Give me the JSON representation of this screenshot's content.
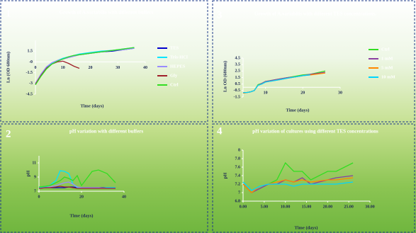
{
  "chart_data": [
    {
      "type": "line",
      "label": "1",
      "title": "Growth of A.variabilis with different buffers",
      "xlabel": "Time (days)",
      "ylabel": "Ln (OD 680nm)",
      "x": [
        0,
        2,
        4,
        6,
        8,
        10,
        12,
        14,
        16,
        20,
        24,
        28,
        32,
        36
      ],
      "series": [
        {
          "name": "TES",
          "color": "#0000cc",
          "values": [
            -3.0,
            -1.8,
            -0.8,
            -0.2,
            0.1,
            0.4,
            0.6,
            0.8,
            1.0,
            1.2,
            1.4,
            1.5,
            1.7,
            1.9
          ]
        },
        {
          "name": "Tris-HCl",
          "color": "#00e5ff",
          "values": [
            -3.1,
            -1.9,
            -0.9,
            -0.2,
            0.2,
            0.5,
            0.7,
            0.9,
            1.1,
            1.3,
            1.5,
            1.6,
            1.8,
            2.0
          ]
        },
        {
          "name": "HEPES",
          "color": "#9a8cff",
          "values": [
            -3.0,
            -1.7,
            -0.7,
            -0.1,
            0.2,
            0.4,
            0.6,
            0.8,
            1.0,
            1.2,
            1.4,
            1.6,
            1.7,
            1.9
          ]
        },
        {
          "name": "Gly",
          "color": "#a0202a",
          "values": [
            -3.1,
            -1.9,
            -0.9,
            -0.3,
            0.0,
            0.1,
            -0.2,
            -0.6,
            -0.9,
            null,
            null,
            null,
            null,
            null
          ]
        },
        {
          "name": "Ctrl",
          "color": "#33dd22",
          "values": [
            -3.2,
            -2.0,
            -1.0,
            -0.3,
            0.1,
            0.4,
            0.7,
            0.9,
            1.0,
            1.2,
            1.4,
            1.6,
            1.8,
            2.0
          ]
        }
      ],
      "xlim": [
        0,
        40
      ],
      "ylim": [
        -4.5,
        3
      ],
      "xticks": [
        0,
        10,
        20,
        30,
        40
      ],
      "yticks": [
        1.5,
        {
          "value": 0,
          "label": "-0"
        },
        -1.5,
        -3,
        -4.5
      ],
      "legend": true
    },
    {
      "type": "line",
      "label": "2",
      "title": "pH variation with different buffers",
      "xlabel": "Time (days)",
      "ylabel": "pH",
      "x": [
        0,
        3,
        5,
        8,
        10,
        12,
        14,
        16,
        18,
        20,
        25,
        28,
        32,
        36
      ],
      "series": [
        {
          "name": "TES",
          "color": "#0000cc",
          "values": [
            7.4,
            7.5,
            7.5,
            7.5,
            7.5,
            7.5,
            7.6,
            7.6,
            7.5,
            7.5,
            7.5,
            7.5,
            7.5,
            7.5
          ]
        },
        {
          "name": "Tris-HCl",
          "color": "#00e5ff",
          "values": [
            7.5,
            7.6,
            7.8,
            8.5,
            9.9,
            9.8,
            9.5,
            8.0,
            7.5,
            7.5,
            7.4,
            7.4,
            7.5,
            7.5
          ]
        },
        {
          "name": "HEPES",
          "color": "#9a8cff",
          "values": [
            7.4,
            7.5,
            7.6,
            7.8,
            8.0,
            8.2,
            8.3,
            8.0,
            7.6,
            7.5,
            7.5,
            7.5,
            7.4,
            7.4
          ]
        },
        {
          "name": "Gly",
          "color": "#a0202a",
          "values": [
            7.4,
            7.5,
            7.5,
            7.6,
            7.7,
            7.6,
            7.6,
            7.5,
            7.4,
            7.4,
            7.4,
            7.4,
            7.4,
            7.4
          ]
        },
        {
          "name": "Ctrl",
          "color": "#33dd22",
          "values": [
            7.6,
            7.7,
            7.8,
            8.2,
            8.5,
            9.0,
            8.8,
            8.5,
            9.2,
            7.8,
            9.8,
            10.0,
            9.5,
            8.2
          ]
        }
      ],
      "xlim": [
        0,
        40
      ],
      "ylim": [
        7,
        12
      ],
      "xticks": [
        0,
        20,
        40
      ],
      "yticks": [
        7,
        9,
        11
      ],
      "legend": false
    },
    {
      "type": "line",
      "label": "3",
      "title": "Growth of A.variabilis with different TES concentrations.",
      "xlabel": "Time (days)",
      "ylabel": "Ln OD (680nm)",
      "x": [
        4,
        5,
        6,
        7,
        8,
        9,
        10,
        12,
        14,
        15,
        16,
        18,
        20,
        22,
        26
      ],
      "series": [
        {
          "name": "Ctrl",
          "color": "#33dd22",
          "values": [
            -0.9,
            -0.8,
            -0.7,
            -0.5,
            0.4,
            0.6,
            0.9,
            1.1,
            1.3,
            1.4,
            1.5,
            1.7,
            1.9,
            2.0,
            2.5
          ]
        },
        {
          "name": "1 mM",
          "color": "#8a3fa0",
          "values": [
            -0.9,
            -0.8,
            -0.7,
            -0.5,
            0.3,
            0.6,
            0.9,
            1.1,
            1.3,
            1.4,
            1.5,
            1.6,
            1.8,
            2.0,
            2.3
          ]
        },
        {
          "name": "5 mM",
          "color": "#ff8800",
          "values": [
            -0.9,
            -0.8,
            -0.7,
            -0.5,
            0.3,
            0.5,
            0.8,
            1.0,
            1.2,
            1.3,
            1.4,
            1.6,
            1.8,
            1.9,
            2.2
          ]
        },
        {
          "name": "10 mM",
          "color": "#00d5ff",
          "values": [
            -0.8,
            -0.8,
            -0.7,
            -0.5,
            0.3,
            0.5,
            0.8,
            1.0,
            1.2,
            1.3,
            1.4,
            1.6,
            1.8,
            1.9,
            null
          ]
        }
      ],
      "xlim": [
        4,
        30
      ],
      "ylim": [
        -1.5,
        4.5
      ],
      "xticks": [
        10,
        20,
        30
      ],
      "yticks": [
        4.5,
        3.5,
        2.5,
        1.5,
        0.5,
        -0.5,
        -1.5
      ],
      "legend": true
    },
    {
      "type": "line",
      "label": "4",
      "title": "pH variation of cultures using different TES concentrations",
      "xlabel": "Time (days)",
      "ylabel": "pH",
      "x": [
        0,
        2,
        4,
        6,
        8,
        10,
        12,
        14,
        16,
        20,
        22,
        26
      ],
      "series": [
        {
          "name": "Ctrl",
          "color": "#33dd22",
          "values": [
            7.2,
            7.0,
            7.1,
            7.2,
            7.3,
            7.7,
            7.5,
            7.5,
            7.3,
            7.5,
            7.5,
            7.7
          ]
        },
        {
          "name": "1 mM",
          "color": "#8a3fa0",
          "values": [
            7.2,
            7.0,
            7.1,
            7.2,
            7.2,
            7.3,
            7.25,
            7.35,
            7.2,
            7.3,
            7.35,
            7.4
          ]
        },
        {
          "name": "5 mM",
          "color": "#ff8800",
          "values": [
            7.2,
            7.0,
            7.15,
            7.2,
            7.25,
            7.3,
            7.25,
            7.3,
            7.25,
            7.3,
            7.3,
            7.35
          ]
        },
        {
          "name": "10 mM",
          "color": "#00d5ff",
          "values": [
            7.25,
            7.05,
            7.15,
            7.2,
            7.2,
            7.2,
            7.15,
            7.2,
            7.2,
            7.2,
            7.2,
            7.25
          ]
        }
      ],
      "xlim": [
        0,
        30
      ],
      "ylim": [
        6.8,
        8
      ],
      "xticks": [
        {
          "value": 0,
          "label": "0.00"
        },
        {
          "value": 5,
          "label": "5.00"
        },
        {
          "value": 10,
          "label": "10.00"
        },
        {
          "value": 15,
          "label": "15.00"
        },
        {
          "value": 20,
          "label": "20.00"
        },
        {
          "value": 25,
          "label": "25.00"
        },
        {
          "value": 30,
          "label": "30.00"
        }
      ],
      "yticks": [
        6.8,
        7,
        7.2,
        7.4,
        7.6,
        7.8,
        8
      ],
      "legend": false
    }
  ]
}
